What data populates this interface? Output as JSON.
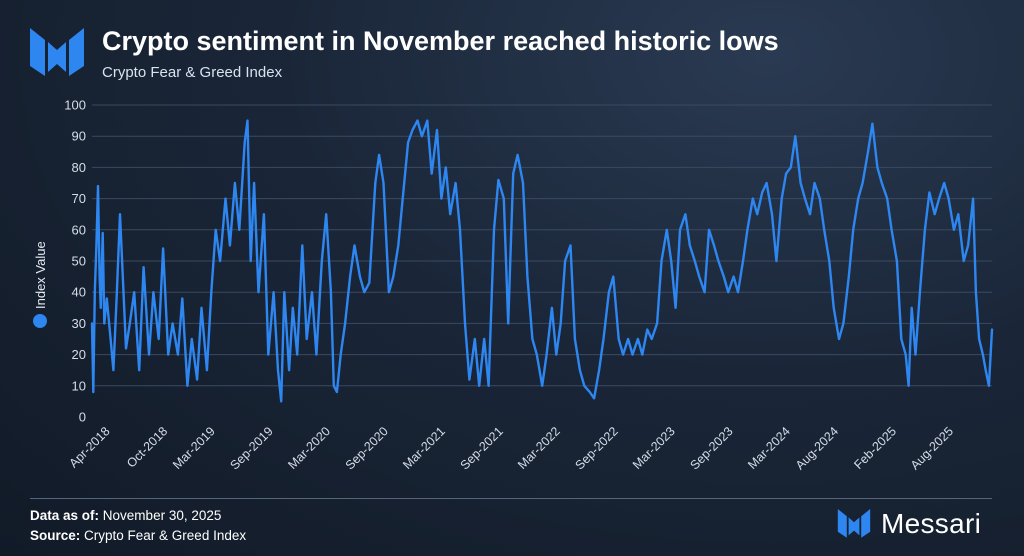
{
  "title": "Crypto sentiment in November reached historic lows",
  "subtitle": "Crypto Fear & Greed Index",
  "footer": {
    "data_as_of_label": "Data as of:",
    "data_as_of_value": "November 30, 2025",
    "source_label": "Source:",
    "source_value": "Crypto Fear & Greed Index"
  },
  "brand": {
    "name": "Messari",
    "accent": "#2e86f0"
  },
  "chart_data": {
    "type": "line",
    "title": "Crypto sentiment in November reached historic lows",
    "subtitle": "Crypto Fear & Greed Index",
    "ylabel": "",
    "ylim": [
      0,
      100
    ],
    "yticks": [
      0,
      10,
      20,
      30,
      40,
      50,
      60,
      70,
      80,
      90,
      100
    ],
    "xlim": [
      "2018-02-01",
      "2025-11-30"
    ],
    "grid": true,
    "legend": "left",
    "color": "#2e86f0",
    "xticks": [
      {
        "date": "2018-04-01",
        "label": "Apr-2018"
      },
      {
        "date": "2018-10-01",
        "label": "Oct-2018"
      },
      {
        "date": "2019-03-01",
        "label": "Mar-2019"
      },
      {
        "date": "2019-09-01",
        "label": "Sep-2019"
      },
      {
        "date": "2020-03-01",
        "label": "Mar-2020"
      },
      {
        "date": "2020-09-01",
        "label": "Sep-2020"
      },
      {
        "date": "2021-03-01",
        "label": "Mar-2021"
      },
      {
        "date": "2021-09-01",
        "label": "Sep-2021"
      },
      {
        "date": "2022-03-01",
        "label": "Mar-2022"
      },
      {
        "date": "2022-09-01",
        "label": "Sep-2022"
      },
      {
        "date": "2023-03-01",
        "label": "Mar-2023"
      },
      {
        "date": "2023-09-01",
        "label": "Sep-2023"
      },
      {
        "date": "2024-03-01",
        "label": "Mar-2024"
      },
      {
        "date": "2024-08-01",
        "label": "Aug-2024"
      },
      {
        "date": "2025-02-01",
        "label": "Feb-2025"
      },
      {
        "date": "2025-08-01",
        "label": "Aug-2025"
      }
    ],
    "series": [
      {
        "name": "Index Value",
        "points": [
          [
            "2018-02-01",
            30
          ],
          [
            "2018-02-05",
            8
          ],
          [
            "2018-02-10",
            40
          ],
          [
            "2018-02-15",
            55
          ],
          [
            "2018-02-20",
            74
          ],
          [
            "2018-02-25",
            45
          ],
          [
            "2018-03-01",
            35
          ],
          [
            "2018-03-07",
            59
          ],
          [
            "2018-03-12",
            30
          ],
          [
            "2018-03-20",
            38
          ],
          [
            "2018-04-01",
            25
          ],
          [
            "2018-04-10",
            15
          ],
          [
            "2018-04-20",
            38
          ],
          [
            "2018-05-01",
            65
          ],
          [
            "2018-05-10",
            45
          ],
          [
            "2018-05-20",
            22
          ],
          [
            "2018-06-01",
            30
          ],
          [
            "2018-06-15",
            40
          ],
          [
            "2018-07-01",
            15
          ],
          [
            "2018-07-15",
            48
          ],
          [
            "2018-08-01",
            20
          ],
          [
            "2018-08-15",
            40
          ],
          [
            "2018-09-01",
            25
          ],
          [
            "2018-09-15",
            54
          ],
          [
            "2018-10-01",
            20
          ],
          [
            "2018-10-15",
            30
          ],
          [
            "2018-11-01",
            20
          ],
          [
            "2018-11-15",
            38
          ],
          [
            "2018-12-01",
            10
          ],
          [
            "2018-12-15",
            25
          ],
          [
            "2019-01-01",
            12
          ],
          [
            "2019-01-15",
            35
          ],
          [
            "2019-02-01",
            15
          ],
          [
            "2019-02-15",
            40
          ],
          [
            "2019-03-01",
            60
          ],
          [
            "2019-03-15",
            50
          ],
          [
            "2019-04-01",
            70
          ],
          [
            "2019-04-15",
            55
          ],
          [
            "2019-05-01",
            75
          ],
          [
            "2019-05-15",
            60
          ],
          [
            "2019-06-01",
            88
          ],
          [
            "2019-06-10",
            95
          ],
          [
            "2019-06-20",
            50
          ],
          [
            "2019-07-01",
            75
          ],
          [
            "2019-07-15",
            40
          ],
          [
            "2019-08-01",
            65
          ],
          [
            "2019-08-15",
            20
          ],
          [
            "2019-09-01",
            40
          ],
          [
            "2019-09-15",
            15
          ],
          [
            "2019-09-25",
            5
          ],
          [
            "2019-10-05",
            40
          ],
          [
            "2019-10-20",
            15
          ],
          [
            "2019-11-01",
            35
          ],
          [
            "2019-11-15",
            20
          ],
          [
            "2019-12-01",
            55
          ],
          [
            "2019-12-15",
            25
          ],
          [
            "2020-01-01",
            40
          ],
          [
            "2020-01-15",
            20
          ],
          [
            "2020-02-01",
            50
          ],
          [
            "2020-02-15",
            65
          ],
          [
            "2020-03-01",
            40
          ],
          [
            "2020-03-10",
            10
          ],
          [
            "2020-03-20",
            8
          ],
          [
            "2020-04-01",
            20
          ],
          [
            "2020-04-15",
            30
          ],
          [
            "2020-05-01",
            45
          ],
          [
            "2020-05-15",
            55
          ],
          [
            "2020-06-01",
            45
          ],
          [
            "2020-06-15",
            40
          ],
          [
            "2020-07-01",
            43
          ],
          [
            "2020-07-20",
            75
          ],
          [
            "2020-08-01",
            84
          ],
          [
            "2020-08-15",
            75
          ],
          [
            "2020-09-01",
            40
          ],
          [
            "2020-09-15",
            45
          ],
          [
            "2020-10-01",
            55
          ],
          [
            "2020-10-15",
            70
          ],
          [
            "2020-11-01",
            88
          ],
          [
            "2020-11-15",
            92
          ],
          [
            "2020-12-01",
            95
          ],
          [
            "2020-12-15",
            90
          ],
          [
            "2021-01-01",
            95
          ],
          [
            "2021-01-15",
            78
          ],
          [
            "2021-02-01",
            92
          ],
          [
            "2021-02-15",
            70
          ],
          [
            "2021-03-01",
            80
          ],
          [
            "2021-03-15",
            65
          ],
          [
            "2021-04-01",
            75
          ],
          [
            "2021-04-15",
            60
          ],
          [
            "2021-05-01",
            30
          ],
          [
            "2021-05-15",
            12
          ],
          [
            "2021-06-01",
            25
          ],
          [
            "2021-06-15",
            10
          ],
          [
            "2021-07-01",
            25
          ],
          [
            "2021-07-15",
            10
          ],
          [
            "2021-08-01",
            60
          ],
          [
            "2021-08-15",
            76
          ],
          [
            "2021-09-01",
            70
          ],
          [
            "2021-09-15",
            30
          ],
          [
            "2021-10-01",
            78
          ],
          [
            "2021-10-15",
            84
          ],
          [
            "2021-11-01",
            75
          ],
          [
            "2021-11-15",
            45
          ],
          [
            "2021-12-01",
            25
          ],
          [
            "2021-12-15",
            20
          ],
          [
            "2022-01-01",
            10
          ],
          [
            "2022-01-15",
            20
          ],
          [
            "2022-02-01",
            35
          ],
          [
            "2022-02-15",
            20
          ],
          [
            "2022-03-01",
            30
          ],
          [
            "2022-03-15",
            50
          ],
          [
            "2022-04-01",
            55
          ],
          [
            "2022-04-15",
            25
          ],
          [
            "2022-05-01",
            15
          ],
          [
            "2022-05-15",
            10
          ],
          [
            "2022-06-01",
            8
          ],
          [
            "2022-06-15",
            6
          ],
          [
            "2022-07-01",
            15
          ],
          [
            "2022-07-15",
            25
          ],
          [
            "2022-08-01",
            40
          ],
          [
            "2022-08-15",
            45
          ],
          [
            "2022-09-01",
            25
          ],
          [
            "2022-09-15",
            20
          ],
          [
            "2022-10-01",
            25
          ],
          [
            "2022-10-15",
            20
          ],
          [
            "2022-11-01",
            25
          ],
          [
            "2022-11-15",
            20
          ],
          [
            "2022-12-01",
            28
          ],
          [
            "2022-12-15",
            25
          ],
          [
            "2023-01-01",
            30
          ],
          [
            "2023-01-15",
            50
          ],
          [
            "2023-02-01",
            60
          ],
          [
            "2023-02-15",
            50
          ],
          [
            "2023-03-01",
            35
          ],
          [
            "2023-03-15",
            60
          ],
          [
            "2023-04-01",
            65
          ],
          [
            "2023-04-15",
            55
          ],
          [
            "2023-05-01",
            50
          ],
          [
            "2023-05-15",
            45
          ],
          [
            "2023-06-01",
            40
          ],
          [
            "2023-06-15",
            60
          ],
          [
            "2023-07-01",
            55
          ],
          [
            "2023-07-15",
            50
          ],
          [
            "2023-08-01",
            45
          ],
          [
            "2023-08-15",
            40
          ],
          [
            "2023-09-01",
            45
          ],
          [
            "2023-09-15",
            40
          ],
          [
            "2023-10-01",
            50
          ],
          [
            "2023-10-15",
            60
          ],
          [
            "2023-11-01",
            70
          ],
          [
            "2023-11-15",
            65
          ],
          [
            "2023-12-01",
            72
          ],
          [
            "2023-12-15",
            75
          ],
          [
            "2024-01-01",
            65
          ],
          [
            "2024-01-15",
            50
          ],
          [
            "2024-02-01",
            70
          ],
          [
            "2024-02-15",
            78
          ],
          [
            "2024-03-01",
            80
          ],
          [
            "2024-03-15",
            90
          ],
          [
            "2024-04-01",
            75
          ],
          [
            "2024-04-15",
            70
          ],
          [
            "2024-05-01",
            65
          ],
          [
            "2024-05-15",
            75
          ],
          [
            "2024-06-01",
            70
          ],
          [
            "2024-06-15",
            60
          ],
          [
            "2024-07-01",
            50
          ],
          [
            "2024-07-15",
            35
          ],
          [
            "2024-08-01",
            25
          ],
          [
            "2024-08-15",
            30
          ],
          [
            "2024-09-01",
            45
          ],
          [
            "2024-09-15",
            60
          ],
          [
            "2024-10-01",
            70
          ],
          [
            "2024-10-15",
            75
          ],
          [
            "2024-11-01",
            85
          ],
          [
            "2024-11-15",
            94
          ],
          [
            "2024-12-01",
            80
          ],
          [
            "2024-12-15",
            75
          ],
          [
            "2025-01-01",
            70
          ],
          [
            "2025-01-15",
            60
          ],
          [
            "2025-02-01",
            50
          ],
          [
            "2025-02-15",
            25
          ],
          [
            "2025-03-01",
            20
          ],
          [
            "2025-03-10",
            10
          ],
          [
            "2025-03-20",
            35
          ],
          [
            "2025-04-01",
            20
          ],
          [
            "2025-04-15",
            40
          ],
          [
            "2025-05-01",
            60
          ],
          [
            "2025-05-15",
            72
          ],
          [
            "2025-06-01",
            65
          ],
          [
            "2025-06-15",
            70
          ],
          [
            "2025-07-01",
            75
          ],
          [
            "2025-07-15",
            70
          ],
          [
            "2025-08-01",
            60
          ],
          [
            "2025-08-15",
            65
          ],
          [
            "2025-09-01",
            50
          ],
          [
            "2025-09-15",
            55
          ],
          [
            "2025-10-01",
            70
          ],
          [
            "2025-10-10",
            40
          ],
          [
            "2025-10-20",
            25
          ],
          [
            "2025-11-01",
            20
          ],
          [
            "2025-11-10",
            15
          ],
          [
            "2025-11-20",
            10
          ],
          [
            "2025-11-30",
            28
          ]
        ]
      }
    ]
  }
}
